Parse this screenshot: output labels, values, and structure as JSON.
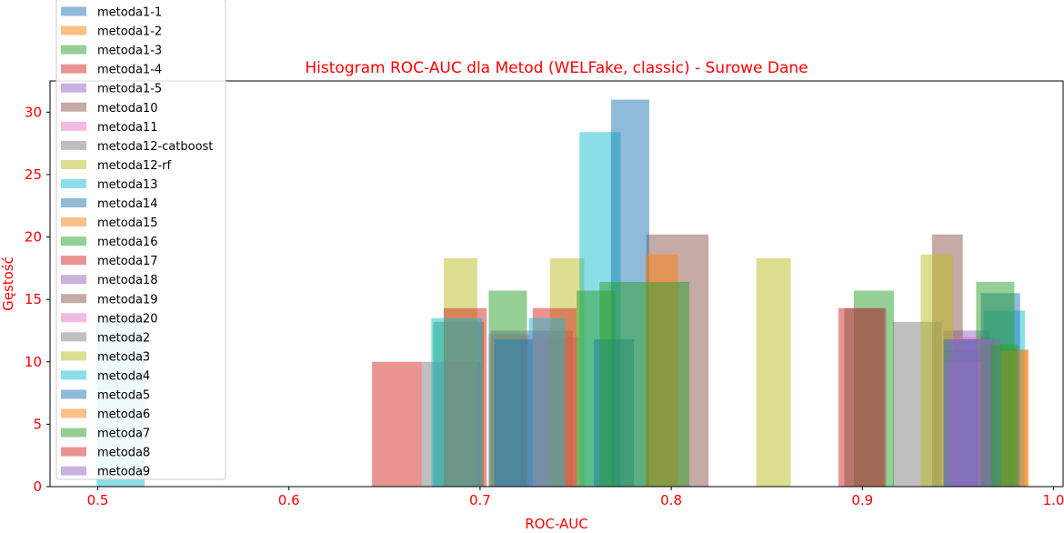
{
  "chart_data": {
    "type": "bar",
    "title": "Histogram ROC-AUC dla Metod (WELFake, classic) - Surowe Dane",
    "xlabel": "ROC-AUC",
    "ylabel": "Gęstość",
    "xlim": [
      0.475,
      1.005
    ],
    "ylim": [
      0,
      32.5
    ],
    "xticks": [
      "0.5",
      "0.6",
      "0.7",
      "0.8",
      "0.9",
      "1.0"
    ],
    "yticks": [
      "0",
      "5",
      "10",
      "15",
      "20",
      "25",
      "30"
    ],
    "legend_position": "upper-left",
    "text_color": "#ff0000",
    "series": [
      {
        "name": "metoda1-1",
        "color": "#1f77b4",
        "bars": []
      },
      {
        "name": "metoda1-2",
        "color": "#ff7f0e",
        "bars": [
          {
            "x0": 0.972,
            "x1": 0.987,
            "y": 11.0
          }
        ]
      },
      {
        "name": "metoda1-3",
        "color": "#2ca02c",
        "bars": [
          {
            "x0": 0.6755,
            "x1": 0.702,
            "y": 13.2
          },
          {
            "x0": 0.9425,
            "x1": 0.9625,
            "y": 10.9
          }
        ]
      },
      {
        "name": "metoda1-4",
        "color": "#d62728",
        "bars": [
          {
            "x0": 0.6435,
            "x1": 0.6695,
            "y": 10.0
          }
        ]
      },
      {
        "name": "metoda1-5",
        "color": "#9467bd",
        "bars": [
          {
            "x0": 0.7055,
            "x1": 0.7485,
            "y": 12.5
          },
          {
            "x0": 0.9425,
            "x1": 0.9665,
            "y": 12.5
          }
        ]
      },
      {
        "name": "metoda10",
        "color": "#8c564b",
        "bars": [
          {
            "x0": 0.787,
            "x1": 0.8195,
            "y": 20.2
          },
          {
            "x0": 0.9365,
            "x1": 0.9525,
            "y": 20.2
          }
        ]
      },
      {
        "name": "metoda11",
        "color": "#e377c2",
        "bars": [
          {
            "x0": 0.7215,
            "x1": 0.7515,
            "y": 12.0
          },
          {
            "x0": 0.9475,
            "x1": 0.9695,
            "y": 12.0
          }
        ]
      },
      {
        "name": "metoda12-catboost",
        "color": "#7f7f7f",
        "bars": [
          {
            "x0": 0.6695,
            "x1": 0.7005,
            "y": 10.0
          },
          {
            "x0": 0.916,
            "x1": 0.9415,
            "y": 13.2
          }
        ]
      },
      {
        "name": "metoda12-rf",
        "color": "#bcbd22",
        "bars": [
          {
            "x0": 0.681,
            "x1": 0.6985,
            "y": 18.3
          },
          {
            "x0": 0.7365,
            "x1": 0.7545,
            "y": 18.3
          },
          {
            "x0": 0.8445,
            "x1": 0.8625,
            "y": 18.3
          },
          {
            "x0": 0.9305,
            "x1": 0.9475,
            "y": 18.6
          }
        ]
      },
      {
        "name": "metoda13",
        "color": "#17becf",
        "bars": [
          {
            "x0": 0.752,
            "x1": 0.7735,
            "y": 28.4
          },
          {
            "x0": 0.9635,
            "x1": 0.985,
            "y": 14.1
          }
        ]
      },
      {
        "name": "metoda14",
        "color": "#1f77b4",
        "bars": [
          {
            "x0": 0.7685,
            "x1": 0.7885,
            "y": 31.0
          },
          {
            "x0": 0.962,
            "x1": 0.9825,
            "y": 15.5
          }
        ]
      },
      {
        "name": "metoda15",
        "color": "#ff7f0e",
        "bars": [
          {
            "x0": 0.7865,
            "x1": 0.8035,
            "y": 18.6
          }
        ]
      },
      {
        "name": "metoda16",
        "color": "#2ca02c",
        "bars": [
          {
            "x0": 0.7045,
            "x1": 0.7245,
            "y": 15.7
          },
          {
            "x0": 0.7505,
            "x1": 0.7705,
            "y": 15.7
          },
          {
            "x0": 0.8955,
            "x1": 0.9165,
            "y": 15.7
          },
          {
            "x0": 0.9595,
            "x1": 0.9795,
            "y": 16.4
          }
        ]
      },
      {
        "name": "metoda17",
        "color": "#d62728",
        "bars": [
          {
            "x0": 0.681,
            "x1": 0.7035,
            "y": 14.3
          },
          {
            "x0": 0.7275,
            "x1": 0.7505,
            "y": 14.3
          },
          {
            "x0": 0.8875,
            "x1": 0.9115,
            "y": 14.3
          }
        ]
      },
      {
        "name": "metoda18",
        "color": "#9467bd",
        "bars": [
          {
            "x0": 0.9525,
            "x1": 0.9725,
            "y": 11.8
          }
        ]
      },
      {
        "name": "metoda19",
        "color": "#8c564b",
        "bars": [
          {
            "x0": 0.8905,
            "x1": 0.9125,
            "y": 14.3
          }
        ]
      },
      {
        "name": "metoda20",
        "color": "#e377c2",
        "bars": [
          {
            "x0": 0.9425,
            "x1": 0.9625,
            "y": 10.0
          }
        ]
      },
      {
        "name": "metoda2",
        "color": "#7f7f7f",
        "bars": [
          {
            "x0": 0.7045,
            "x1": 0.7255,
            "y": 12.2
          }
        ]
      },
      {
        "name": "metoda3",
        "color": "#bcbd22",
        "bars": []
      },
      {
        "name": "metoda4",
        "color": "#17becf",
        "bars": [
          {
            "x0": 0.4995,
            "x1": 0.5245,
            "y": 13.5
          },
          {
            "x0": 0.6745,
            "x1": 0.701,
            "y": 13.5
          },
          {
            "x0": 0.7255,
            "x1": 0.7445,
            "y": 13.5
          }
        ]
      },
      {
        "name": "metoda5",
        "color": "#1f77b4",
        "bars": [
          {
            "x0": 0.7075,
            "x1": 0.7275,
            "y": 11.8
          },
          {
            "x0": 0.7595,
            "x1": 0.7805,
            "y": 11.8
          },
          {
            "x0": 0.9425,
            "x1": 0.9605,
            "y": 11.8
          }
        ]
      },
      {
        "name": "metoda6",
        "color": "#ff7f0e",
        "bars": [
          {
            "x0": 0.9725,
            "x1": 0.9865,
            "y": 10.9
          }
        ]
      },
      {
        "name": "metoda7",
        "color": "#2ca02c",
        "bars": [
          {
            "x0": 0.7625,
            "x1": 0.8095,
            "y": 16.4
          },
          {
            "x0": 0.9615,
            "x1": 0.9815,
            "y": 11.4
          }
        ]
      },
      {
        "name": "metoda8",
        "color": "#d62728",
        "bars": []
      },
      {
        "name": "metoda9",
        "color": "#9467bd",
        "bars": [
          {
            "x0": 0.9445,
            "x1": 0.9675,
            "y": 11.8
          }
        ]
      }
    ]
  }
}
